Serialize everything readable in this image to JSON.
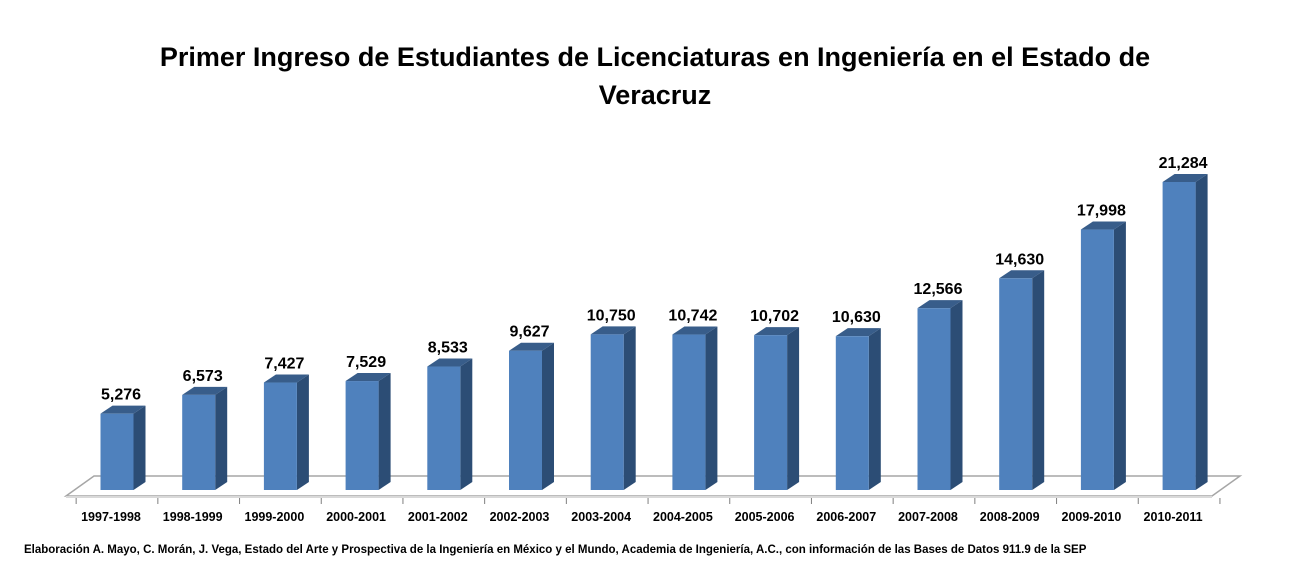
{
  "chart_data": {
    "type": "bar",
    "title": "Primer Ingreso de Estudiantes de Licenciaturas en Ingeniería en el Estado de Veracruz",
    "categories": [
      "1997-1998",
      "1998-1999",
      "1999-2000",
      "2000-2001",
      "2001-2002",
      "2002-2003",
      "2003-2004",
      "2004-2005",
      "2005-2006",
      "2006-2007",
      "2007-2008",
      "2008-2009",
      "2009-2010",
      "2010-2011"
    ],
    "values": [
      5276,
      6573,
      7427,
      7529,
      8533,
      9627,
      10750,
      10742,
      10702,
      10630,
      12566,
      14630,
      17998,
      21284
    ],
    "data_labels": [
      "5,276",
      "6,573",
      "7,427",
      "7,529",
      "8,533",
      "9,627",
      "10,750",
      "10,742",
      "10,702",
      "10,630",
      "12,566",
      "14,630",
      "17,998",
      "21,284"
    ],
    "xlabel": "",
    "ylabel": "",
    "ylim": [
      0,
      21284
    ],
    "grid": false,
    "legend": "none",
    "bar_style": "3d",
    "colors": {
      "bar_front": "#4f81bd",
      "bar_side": "#2c4d75",
      "bar_top": "#385d8a"
    }
  },
  "footer": {
    "source": "Elaboración A. Mayo, C. Morán, J. Vega, Estado del Arte y Prospectiva de la Ingeniería en México y el Mundo, Academia de Ingeniería, A.C., con información de las Bases de Datos  911.9  de la SEP"
  }
}
